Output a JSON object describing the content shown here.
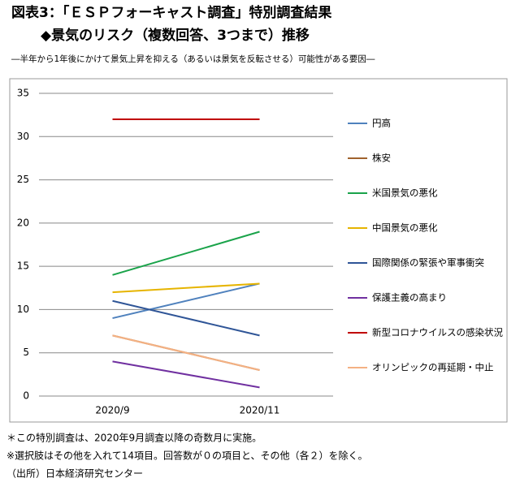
{
  "header": {
    "title": "図表3：「ＥＳＰフォーキャスト調査」特別調査結果",
    "subtitle": "◆景気のリスク（複数回答、3つまで）推移",
    "note": "―半年から1年後にかけて景気上昇を抑える（あるいは景気を反転させる）可能性がある要因―"
  },
  "chart_data": {
    "type": "line",
    "categories": [
      "2020/9",
      "2020/11"
    ],
    "series": [
      {
        "name": "円高",
        "color": "#4f81bd",
        "values": [
          9,
          13
        ]
      },
      {
        "name": "株安",
        "color": "#a0622d",
        "values": [
          7,
          3
        ]
      },
      {
        "name": "米国景気の悪化",
        "color": "#1aa34a",
        "values": [
          14,
          19
        ]
      },
      {
        "name": "中国景気の悪化",
        "color": "#e6b400",
        "values": [
          12,
          13
        ]
      },
      {
        "name": "国際関係の緊張や軍事衝突",
        "color": "#2f5597",
        "values": [
          11,
          7
        ]
      },
      {
        "name": "保護主義の高まり",
        "color": "#7030a0",
        "values": [
          4,
          1
        ]
      },
      {
        "name": "新型コロナウイルスの感染状況",
        "color": "#c00000",
        "values": [
          32,
          32
        ]
      },
      {
        "name": "オリンピックの再延期・中止",
        "color": "#f4b183",
        "values": [
          7,
          3
        ]
      }
    ],
    "ylim": [
      0,
      35
    ],
    "yticks": [
      0,
      5,
      10,
      15,
      20,
      25,
      30,
      35
    ],
    "grid": true
  },
  "footer": {
    "lines": [
      "＊この特別調査は、2020年9月調査以降の奇数月に実施。",
      "※選択肢はその他を入れて14項目。回答数が０の項目と、その他（各２）を除く。",
      "（出所）日本経済研究センター"
    ]
  }
}
